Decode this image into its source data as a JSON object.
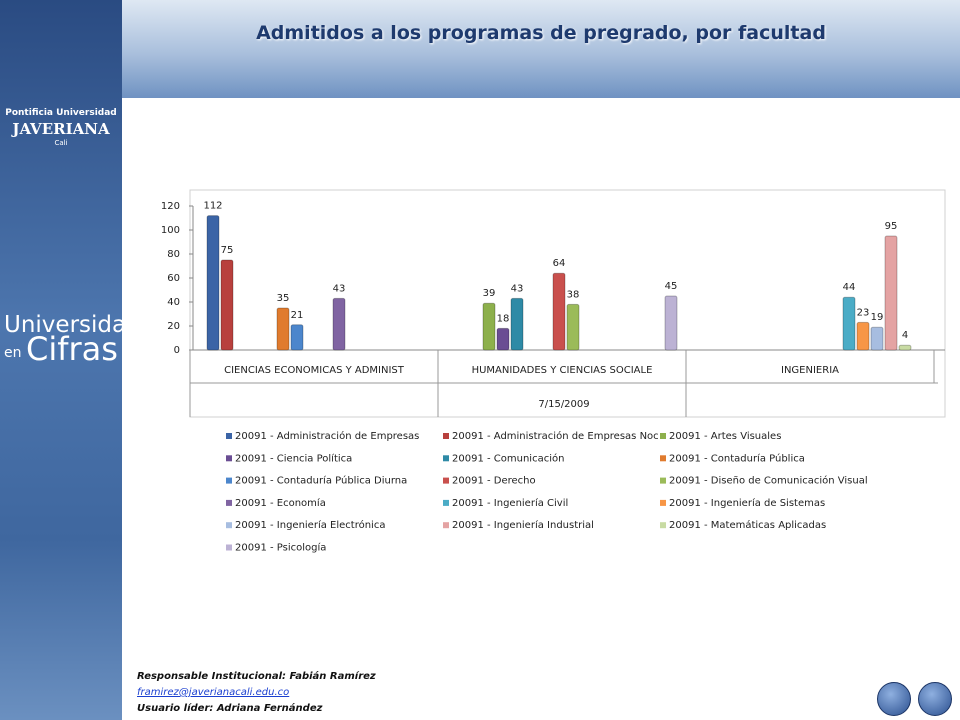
{
  "header": {
    "title": "Admitidos a los programas de pregrado, por facultad"
  },
  "sidebar": {
    "logo_line1": "Pontificia Universidad",
    "logo_line2": "JAVERIANA",
    "logo_line3": "Cali",
    "brand1": "Universidad",
    "brand2": "en",
    "brand3": "Cifras"
  },
  "chart_data": {
    "type": "bar",
    "categories": [
      "CIENCIAS ECONOMICAS Y ADMINIST",
      "HUMANIDADES Y CIENCIAS SOCIALE",
      "INGENIERIA"
    ],
    "xlabel": "7/15/2009",
    "ylim": [
      0,
      120
    ],
    "yticks": [
      0,
      20,
      40,
      60,
      80,
      100,
      120
    ],
    "series": [
      {
        "name": "20091 - Administración de Empresas",
        "color": "#3b64a6",
        "values": [
          112,
          null,
          null
        ]
      },
      {
        "name": "20091 - Administración de Empresas Noc",
        "color": "#b8403d",
        "values": [
          75,
          null,
          null
        ]
      },
      {
        "name": "20091 - Artes Visuales",
        "color": "#8db04c",
        "values": [
          null,
          39,
          null
        ]
      },
      {
        "name": "20091 - Ciencia Política",
        "color": "#6a4d93",
        "values": [
          null,
          18,
          null
        ]
      },
      {
        "name": "20091 - Comunicación",
        "color": "#2e8aa6",
        "values": [
          null,
          43,
          null
        ]
      },
      {
        "name": "20091 - Contaduría Pública",
        "color": "#e07b2e",
        "values": [
          35,
          null,
          null
        ]
      },
      {
        "name": "20091 - Contaduría Pública Diurna",
        "color": "#4c86cc",
        "values": [
          21,
          null,
          null
        ]
      },
      {
        "name": "20091 - Derecho",
        "color": "#c9504d",
        "values": [
          null,
          64,
          null
        ]
      },
      {
        "name": "20091 - Diseño de Comunicación Visual",
        "color": "#9bbb59",
        "values": [
          null,
          38,
          null
        ]
      },
      {
        "name": "20091 - Economía",
        "color": "#8064a2",
        "values": [
          43,
          null,
          null
        ]
      },
      {
        "name": "20091 - Ingeniería Civil",
        "color": "#4bacc6",
        "values": [
          null,
          null,
          44
        ]
      },
      {
        "name": "20091 - Ingeniería de Sistemas",
        "color": "#f79646",
        "values": [
          null,
          null,
          23
        ]
      },
      {
        "name": "20091 - Ingeniería Electrónica",
        "color": "#a7bde0",
        "values": [
          null,
          null,
          19
        ]
      },
      {
        "name": "20091 - Ingeniería Industrial",
        "color": "#e4a3a3",
        "values": [
          null,
          null,
          95
        ]
      },
      {
        "name": "20091 - Matemáticas Aplicadas",
        "color": "#c8dba3",
        "values": [
          null,
          null,
          4
        ]
      },
      {
        "name": "20091 - Psicología",
        "color": "#bcb2d4",
        "values": [
          null,
          45,
          null
        ]
      }
    ]
  },
  "footer": {
    "responsible": "Responsable Institucional: Fabián Ramírez",
    "email": "framirez@javerianacali.edu.co",
    "leader": "Usuario líder: Adriana Fernández"
  }
}
